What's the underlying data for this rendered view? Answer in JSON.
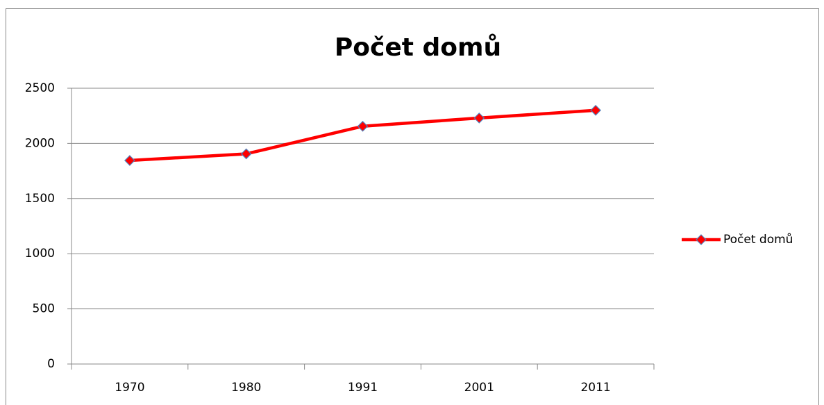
{
  "chart_data": {
    "type": "line",
    "title": "Počet domů",
    "categories": [
      "1970",
      "1980",
      "1991",
      "2001",
      "2011"
    ],
    "series": [
      {
        "name": "Počet domů",
        "color": "#ff0000",
        "marker_color": "#4f81bd",
        "values": [
          1845,
          1905,
          2155,
          2230,
          2300
        ]
      }
    ],
    "ylim": [
      0,
      2500
    ],
    "yticks": [
      0,
      500,
      1000,
      1500,
      2000,
      2500
    ],
    "grid": true,
    "legend": "right"
  }
}
